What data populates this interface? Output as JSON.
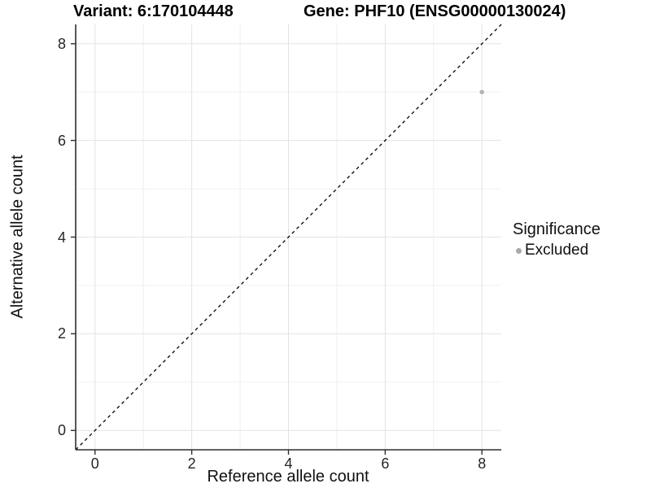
{
  "chart_data": {
    "type": "scatter",
    "title_left": "Variant: 6:170104448",
    "title_right": "Gene: PHF10 (ENSG00000130024)",
    "xlabel": "Reference allele count",
    "ylabel": "Alternative allele count",
    "xlim": [
      -0.4,
      8.4
    ],
    "ylim": [
      -0.4,
      8.4
    ],
    "x_ticks": [
      0,
      2,
      4,
      6,
      8
    ],
    "y_ticks": [
      0,
      2,
      4,
      6,
      8
    ],
    "x_minor_ticks": [
      1,
      3,
      5,
      7
    ],
    "y_minor_ticks": [
      1,
      3,
      5,
      7
    ],
    "grid": true,
    "identity_line": {
      "style": "dashed",
      "from": [
        -0.4,
        -0.4
      ],
      "to": [
        8.4,
        8.4
      ],
      "color": "#000000"
    },
    "series": [
      {
        "name": "Excluded",
        "color": "#b5b5b5",
        "points": [
          [
            8,
            7
          ]
        ]
      }
    ],
    "legend": {
      "title": "Significance",
      "position": "right",
      "entries": [
        {
          "label": "Excluded",
          "color": "#a9a9a9"
        }
      ]
    },
    "colors": {
      "background": "#ffffff",
      "grid_major": "#e3e3e3",
      "grid_minor": "#f0f0f0",
      "axis_line": "#2e2e2e",
      "tick_text": "#262626"
    }
  }
}
